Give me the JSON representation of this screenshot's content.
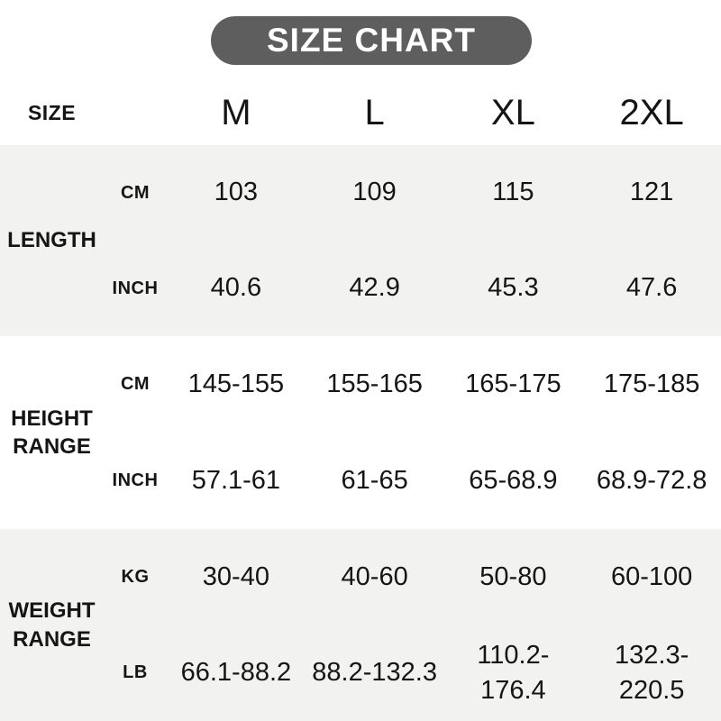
{
  "title": {
    "text": "SIZE CHART"
  },
  "colors": {
    "title_bg": "#5e5e5e",
    "title_text": "#ffffff",
    "band_bg": "#f2f2f0",
    "page_bg": "#ffffff",
    "text": "#151515"
  },
  "header": {
    "size_label": "SIZE",
    "columns": [
      "M",
      "L",
      "XL",
      "2XL"
    ]
  },
  "sections": [
    {
      "label": "LENGTH",
      "rows": [
        {
          "unit": "CM",
          "values": [
            "103",
            "109",
            "115",
            "121"
          ]
        },
        {
          "unit": "INCH",
          "values": [
            "40.6",
            "42.9",
            "45.3",
            "47.6"
          ]
        }
      ]
    },
    {
      "label": "HEIGHT RANGE",
      "rows": [
        {
          "unit": "CM",
          "values": [
            "145-155",
            "155-165",
            "165-175",
            "175-185"
          ]
        },
        {
          "unit": "INCH",
          "values": [
            "57.1-61",
            "61-65",
            "65-68.9",
            "68.9-72.8"
          ]
        }
      ]
    },
    {
      "label": "WEIGHT RANGE",
      "rows": [
        {
          "unit": "KG",
          "values": [
            "30-40",
            "40-60",
            "50-80",
            "60-100"
          ]
        },
        {
          "unit": "LB",
          "values": [
            "66.1-88.2",
            "88.2-132.3",
            "110.2-\n176.4",
            "132.3-\n220.5"
          ]
        }
      ]
    }
  ],
  "chart_data": {
    "type": "table",
    "title": "SIZE CHART",
    "columns": [
      "SIZE",
      "M",
      "L",
      "XL",
      "2XL"
    ],
    "rows": [
      [
        "LENGTH (CM)",
        "103",
        "109",
        "115",
        "121"
      ],
      [
        "LENGTH (INCH)",
        "40.6",
        "42.9",
        "45.3",
        "47.6"
      ],
      [
        "HEIGHT RANGE (CM)",
        "145-155",
        "155-165",
        "165-175",
        "175-185"
      ],
      [
        "HEIGHT RANGE (INCH)",
        "57.1-61",
        "61-65",
        "65-68.9",
        "68.9-72.8"
      ],
      [
        "WEIGHT RANGE (KG)",
        "30-40",
        "40-60",
        "50-80",
        "60-100"
      ],
      [
        "WEIGHT RANGE (LB)",
        "66.1-88.2",
        "88.2-132.3",
        "110.2-176.4",
        "132.3-220.5"
      ]
    ]
  }
}
